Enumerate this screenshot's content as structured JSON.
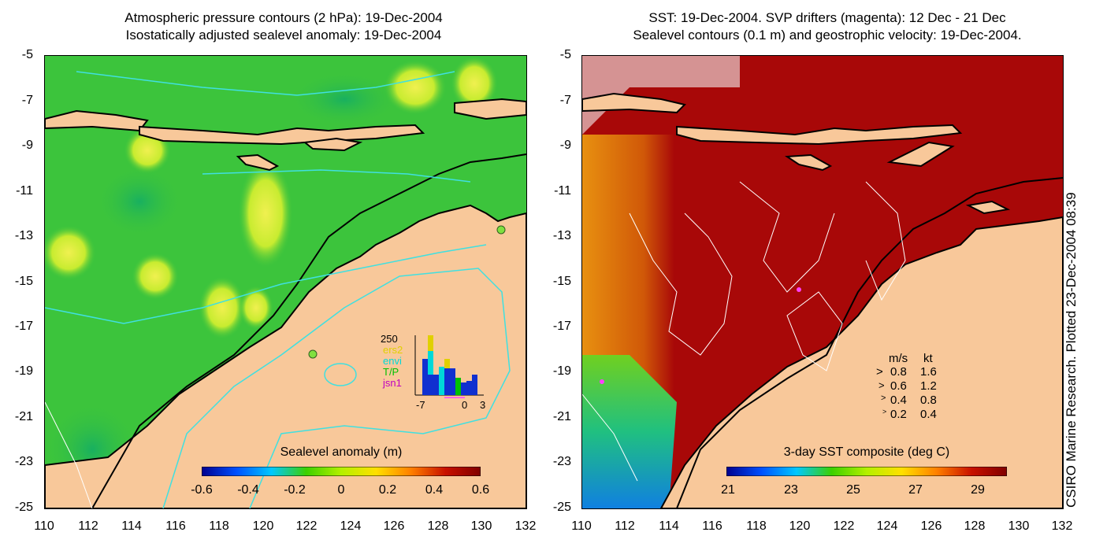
{
  "left_panel": {
    "title_line1": "Atmospheric pressure contours (2 hPa): 19-Dec-2004",
    "title_line2": "Isostatically adjusted sealevel anomaly: 19-Dec-2004",
    "colorbar": {
      "title": "Sealevel anomaly (m)",
      "ticks": [
        "-0.6",
        "-0.4",
        "-0.2",
        "0",
        "0.2",
        "0.4",
        "0.6"
      ],
      "range": [
        -0.6,
        0.6
      ],
      "colormap": [
        "#00008f",
        "#0050ff",
        "#00c8ff",
        "#3cd000",
        "#b4f000",
        "#ffe000",
        "#ff8000",
        "#c81000",
        "#800000"
      ]
    },
    "inset": {
      "ymax_label": "250",
      "legend": [
        {
          "label": "ers2",
          "color": "#e0d000"
        },
        {
          "label": "envi",
          "color": "#00d8d8"
        },
        {
          "label": "T/P",
          "color": "#00c000"
        },
        {
          "label": "jsn1",
          "color": "#c000c0"
        }
      ],
      "x_ticks": [
        "-7",
        "0",
        "3"
      ]
    }
  },
  "right_panel": {
    "title_line1": "SST: 19-Dec-2004. SVP drifters (magenta): 12 Dec - 21 Dec",
    "title_line2": "Sealevel contours (0.1 m) and geostrophic velocity: 19-Dec-2004.",
    "colorbar": {
      "title": "3-day SST composite (deg C)",
      "ticks": [
        "21",
        "23",
        "25",
        "27",
        "29"
      ],
      "range": [
        21,
        30
      ],
      "colormap": [
        "#00008f",
        "#0050ff",
        "#00c8ff",
        "#3cd000",
        "#b4f000",
        "#ffe000",
        "#ff8000",
        "#c81000",
        "#800000"
      ]
    },
    "velocity_legend": {
      "header_ms": "m/s",
      "header_kt": "kt",
      "rows": [
        {
          "ms": "0.8",
          "kt": "1.6"
        },
        {
          "ms": "0.6",
          "kt": "1.2"
        },
        {
          "ms": "0.4",
          "kt": "0.8"
        },
        {
          "ms": "0.2",
          "kt": "0.4"
        }
      ]
    }
  },
  "axes": {
    "y_ticks": [
      "-5",
      "-7",
      "-9",
      "-11",
      "-13",
      "-15",
      "-17",
      "-19",
      "-21",
      "-23",
      "-25"
    ],
    "x_ticks": [
      "110",
      "112",
      "114",
      "116",
      "118",
      "120",
      "122",
      "124",
      "126",
      "128",
      "130",
      "132"
    ]
  },
  "credit": "CSIRO Marine Research. Plotted 23-Dec-2004 08:39",
  "colors": {
    "land": "#f8c89a",
    "ocean_green": "#3cc43c",
    "sst_red": "#a80808",
    "sst_orange": "#e88008",
    "contour_cyan": "#40e0e0"
  }
}
